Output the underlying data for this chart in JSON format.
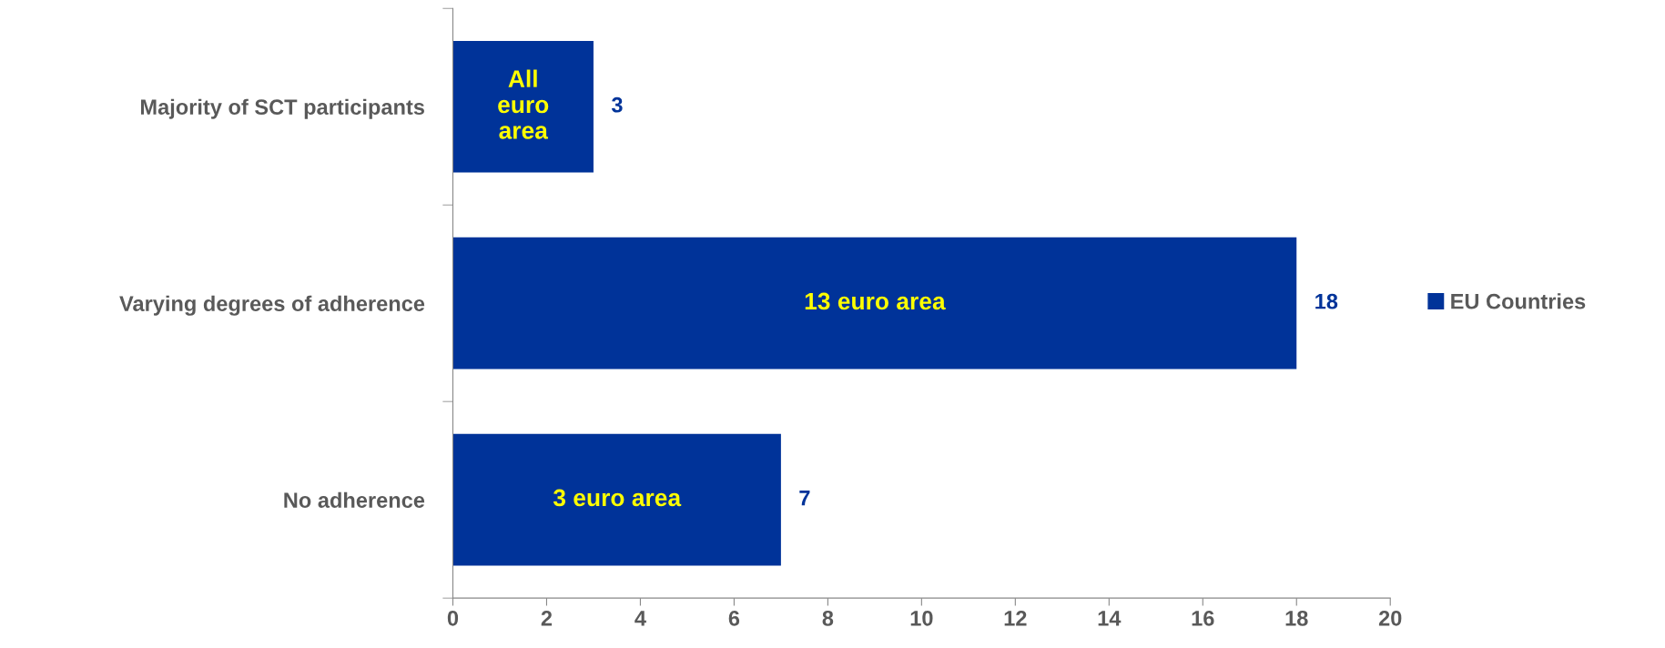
{
  "chart_data": {
    "type": "bar",
    "orientation": "horizontal",
    "categories": [
      "Majority of SCT participants",
      "Varying degrees of adherence",
      "No adherence"
    ],
    "series": [
      {
        "name": "EU Countries",
        "color": "#003399",
        "values": [
          3,
          18,
          7
        ]
      }
    ],
    "xlim": [
      0,
      20
    ],
    "xticks": [
      0,
      2,
      4,
      6,
      8,
      10,
      12,
      14,
      16,
      18,
      20
    ],
    "data_labels": true,
    "grid": false,
    "legend": "right",
    "annotations": [
      "All\neuro\narea",
      "13 euro area",
      "3 euro area"
    ]
  }
}
